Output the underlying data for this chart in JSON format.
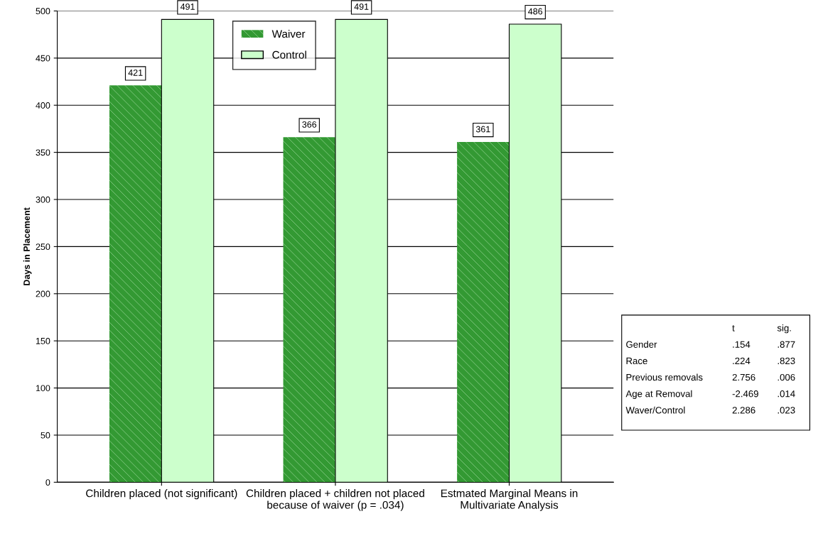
{
  "chart_data": {
    "type": "bar",
    "ylabel": "Days in Placement",
    "categories": [
      "Children placed (not significant)",
      "Children placed + children not placed\nbecause of waiver (p = .034)",
      "Estmated Marginal Means in\nMultivariate Analysis"
    ],
    "series": [
      {
        "name": "Waiver",
        "color": "#339933",
        "values": [
          421,
          366,
          361
        ]
      },
      {
        "name": "Control",
        "color": "#ccffcc",
        "values": [
          491,
          491,
          486
        ]
      }
    ],
    "ylim": [
      0,
      500
    ],
    "yticks": [
      0,
      50,
      100,
      150,
      200,
      250,
      300,
      350,
      400,
      450,
      500
    ],
    "grid": "y",
    "legend": "top",
    "data_labels": true,
    "annotations": [
      "\tt\tsig.",
      "Gender\t.154\t.877",
      "Race\t.224\t.823",
      "Previous removals\t2.756\t.006",
      "Age at Removal\t-2.469\t.014",
      "Waver/Control\t2.286\t.023"
    ]
  }
}
